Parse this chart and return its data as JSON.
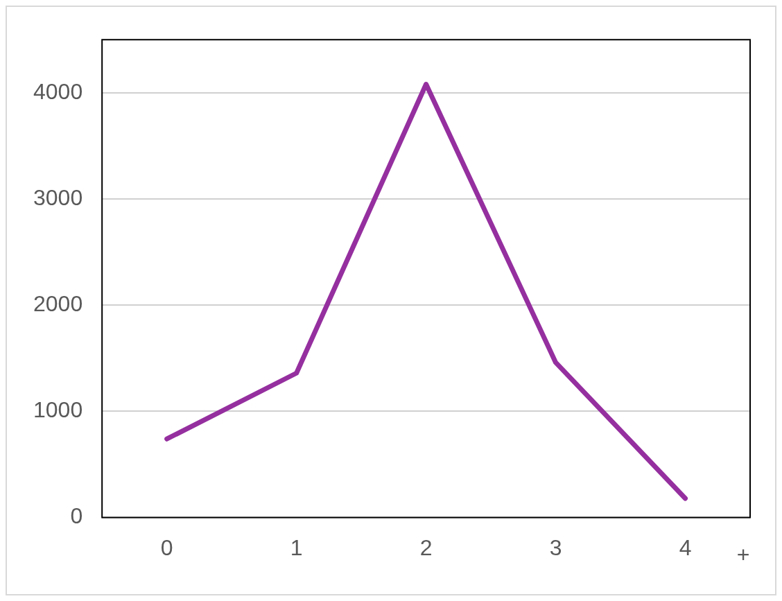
{
  "chart_data": {
    "type": "line",
    "categories": [
      "0",
      "1",
      "2",
      "3",
      "4"
    ],
    "series": [
      {
        "color": "#952f9f",
        "values": [
          740,
          1360,
          4080,
          1460,
          180
        ]
      }
    ],
    "ylim": [
      0,
      4500
    ],
    "yticks": [
      0,
      1000,
      2000,
      3000,
      4000
    ],
    "grid": "y",
    "legend": false,
    "marker": "none",
    "line_style": "solid",
    "annotations": [
      "+"
    ]
  }
}
